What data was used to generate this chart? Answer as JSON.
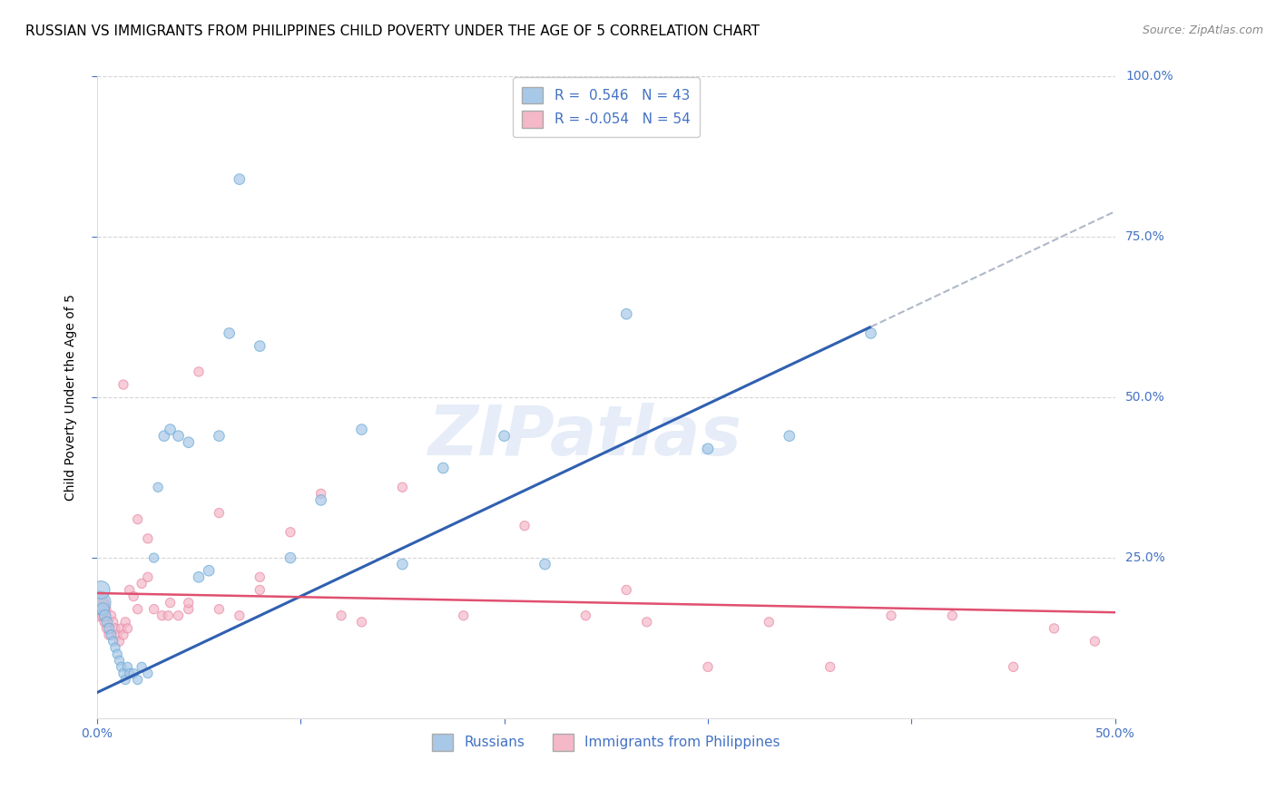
{
  "title": "RUSSIAN VS IMMIGRANTS FROM PHILIPPINES CHILD POVERTY UNDER THE AGE OF 5 CORRELATION CHART",
  "source": "Source: ZipAtlas.com",
  "ylabel": "Child Poverty Under the Age of 5",
  "y_tick_labels": [
    "25.0%",
    "50.0%",
    "75.0%",
    "100.0%"
  ],
  "xlim": [
    0.0,
    0.5
  ],
  "ylim": [
    0.0,
    1.0
  ],
  "russian_color": "#a8c8e8",
  "russian_edge_color": "#6aaad4",
  "philippines_color": "#f4b8c8",
  "philippines_edge_color": "#e888a8",
  "trend_russian_color": "#3060b0",
  "trend_philippines_color": "#e05070",
  "trend_russian_dashed_color": "#b0b8c8",
  "legend_R_russian": " 0.546",
  "legend_N_russian": "43",
  "legend_R_philippines": "-0.054",
  "legend_N_philippines": "54",
  "legend_label_russian": "Russians",
  "legend_label_philippines": "Immigrants from Philippines",
  "watermark": "ZIPatlas",
  "russian_x": [
    0.001,
    0.002,
    0.003,
    0.004,
    0.005,
    0.006,
    0.007,
    0.008,
    0.009,
    0.01,
    0.011,
    0.012,
    0.013,
    0.014,
    0.015,
    0.016,
    0.018,
    0.02,
    0.022,
    0.025,
    0.028,
    0.03,
    0.033,
    0.036,
    0.04,
    0.045,
    0.05,
    0.055,
    0.06,
    0.065,
    0.07,
    0.08,
    0.095,
    0.11,
    0.13,
    0.15,
    0.17,
    0.2,
    0.22,
    0.26,
    0.3,
    0.34,
    0.38
  ],
  "russian_y": [
    0.18,
    0.2,
    0.17,
    0.16,
    0.15,
    0.14,
    0.13,
    0.12,
    0.11,
    0.1,
    0.09,
    0.08,
    0.07,
    0.06,
    0.08,
    0.07,
    0.07,
    0.06,
    0.08,
    0.07,
    0.25,
    0.36,
    0.44,
    0.45,
    0.44,
    0.43,
    0.22,
    0.23,
    0.44,
    0.6,
    0.84,
    0.58,
    0.25,
    0.34,
    0.45,
    0.24,
    0.39,
    0.44,
    0.24,
    0.63,
    0.42,
    0.44,
    0.6
  ],
  "russian_size": [
    350,
    200,
    100,
    80,
    70,
    65,
    60,
    55,
    55,
    55,
    55,
    55,
    55,
    55,
    55,
    55,
    55,
    55,
    55,
    55,
    55,
    55,
    70,
    70,
    70,
    70,
    70,
    70,
    70,
    70,
    70,
    70,
    70,
    70,
    70,
    70,
    70,
    70,
    70,
    70,
    70,
    70,
    70
  ],
  "philippines_x": [
    0.001,
    0.002,
    0.003,
    0.004,
    0.005,
    0.006,
    0.007,
    0.008,
    0.009,
    0.01,
    0.011,
    0.012,
    0.013,
    0.014,
    0.015,
    0.016,
    0.018,
    0.02,
    0.022,
    0.025,
    0.028,
    0.032,
    0.036,
    0.04,
    0.045,
    0.05,
    0.06,
    0.07,
    0.08,
    0.095,
    0.11,
    0.13,
    0.15,
    0.18,
    0.21,
    0.24,
    0.27,
    0.3,
    0.33,
    0.36,
    0.39,
    0.42,
    0.45,
    0.47,
    0.49,
    0.013,
    0.02,
    0.025,
    0.035,
    0.045,
    0.06,
    0.08,
    0.12,
    0.26
  ],
  "philippines_y": [
    0.17,
    0.18,
    0.16,
    0.15,
    0.14,
    0.13,
    0.16,
    0.15,
    0.14,
    0.13,
    0.12,
    0.14,
    0.13,
    0.15,
    0.14,
    0.2,
    0.19,
    0.17,
    0.21,
    0.22,
    0.17,
    0.16,
    0.18,
    0.16,
    0.17,
    0.54,
    0.17,
    0.16,
    0.22,
    0.29,
    0.35,
    0.15,
    0.36,
    0.16,
    0.3,
    0.16,
    0.15,
    0.08,
    0.15,
    0.08,
    0.16,
    0.16,
    0.08,
    0.14,
    0.12,
    0.52,
    0.31,
    0.28,
    0.16,
    0.18,
    0.32,
    0.2,
    0.16,
    0.2
  ],
  "philippines_size": [
    350,
    150,
    80,
    70,
    65,
    60,
    55,
    55,
    55,
    55,
    55,
    55,
    55,
    55,
    55,
    55,
    55,
    55,
    55,
    55,
    55,
    55,
    55,
    55,
    55,
    55,
    55,
    55,
    55,
    55,
    55,
    55,
    55,
    55,
    55,
    55,
    55,
    55,
    55,
    55,
    55,
    55,
    55,
    55,
    55,
    55,
    55,
    55,
    55,
    55,
    55,
    55,
    55,
    55
  ],
  "russian_trend_x0": 0.0,
  "russian_trend_y0": 0.04,
  "russian_trend_x1": 0.5,
  "russian_trend_y1": 0.79,
  "russian_trend_solid_end_x": 0.38,
  "philippines_trend_x0": 0.0,
  "philippines_trend_y0": 0.195,
  "philippines_trend_x1": 0.5,
  "philippines_trend_y1": 0.165,
  "axis_color": "#4472c4",
  "grid_color": "#cccccc",
  "title_fontsize": 11,
  "label_fontsize": 10,
  "tick_fontsize": 10,
  "source_fontsize": 9
}
